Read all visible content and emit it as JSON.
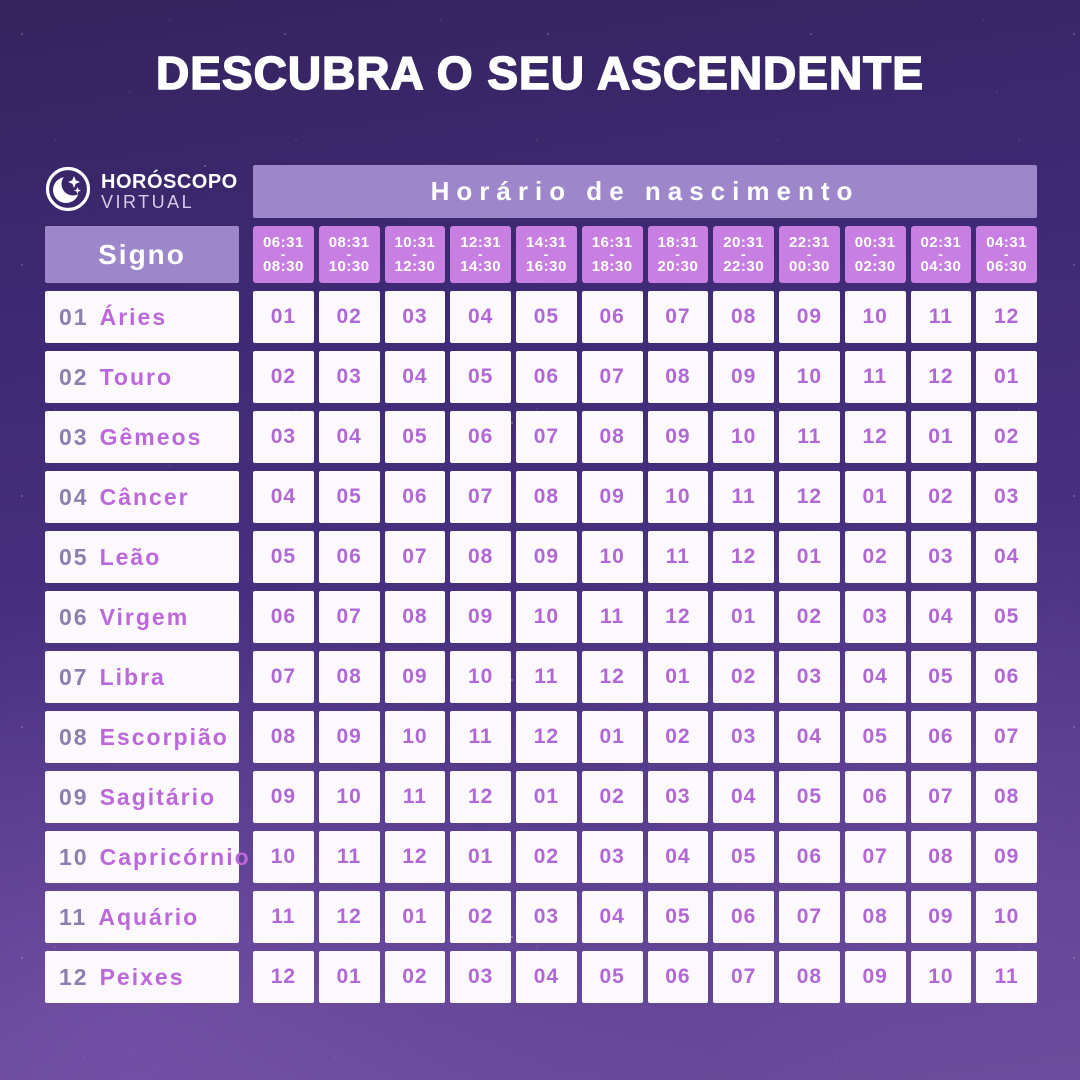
{
  "title": "DESCUBRA O SEU ASCENDENTE",
  "logo": {
    "line1": "HORÓSCOPO",
    "line2": "VIRTUAL"
  },
  "table": {
    "banner": "Horário de nascimento",
    "corner": "Signo",
    "separator": "-",
    "time_slots": [
      {
        "start": "06:31",
        "end": "08:30"
      },
      {
        "start": "08:31",
        "end": "10:30"
      },
      {
        "start": "10:31",
        "end": "12:30"
      },
      {
        "start": "12:31",
        "end": "14:30"
      },
      {
        "start": "14:31",
        "end": "16:30"
      },
      {
        "start": "16:31",
        "end": "18:30"
      },
      {
        "start": "18:31",
        "end": "20:30"
      },
      {
        "start": "20:31",
        "end": "22:30"
      },
      {
        "start": "22:31",
        "end": "00:30"
      },
      {
        "start": "00:31",
        "end": "02:30"
      },
      {
        "start": "02:31",
        "end": "04:30"
      },
      {
        "start": "04:31",
        "end": "06:30"
      }
    ],
    "signs": [
      {
        "num": "01",
        "name": "Áries"
      },
      {
        "num": "02",
        "name": "Touro"
      },
      {
        "num": "03",
        "name": "Gêmeos"
      },
      {
        "num": "04",
        "name": "Câncer"
      },
      {
        "num": "05",
        "name": "Leão"
      },
      {
        "num": "06",
        "name": "Virgem"
      },
      {
        "num": "07",
        "name": "Libra"
      },
      {
        "num": "08",
        "name": "Escorpião"
      },
      {
        "num": "09",
        "name": "Sagitário"
      },
      {
        "num": "10",
        "name": "Capricórnio"
      },
      {
        "num": "11",
        "name": "Aquário"
      },
      {
        "num": "12",
        "name": "Peixes"
      }
    ],
    "grid": [
      [
        "01",
        "02",
        "03",
        "04",
        "05",
        "06",
        "07",
        "08",
        "09",
        "10",
        "11",
        "12"
      ],
      [
        "02",
        "03",
        "04",
        "05",
        "06",
        "07",
        "08",
        "09",
        "10",
        "11",
        "12",
        "01"
      ],
      [
        "03",
        "04",
        "05",
        "06",
        "07",
        "08",
        "09",
        "10",
        "11",
        "12",
        "01",
        "02"
      ],
      [
        "04",
        "05",
        "06",
        "07",
        "08",
        "09",
        "10",
        "11",
        "12",
        "01",
        "02",
        "03"
      ],
      [
        "05",
        "06",
        "07",
        "08",
        "09",
        "10",
        "11",
        "12",
        "01",
        "02",
        "03",
        "04"
      ],
      [
        "06",
        "07",
        "08",
        "09",
        "10",
        "11",
        "12",
        "01",
        "02",
        "03",
        "04",
        "05"
      ],
      [
        "07",
        "08",
        "09",
        "10",
        "11",
        "12",
        "01",
        "02",
        "03",
        "04",
        "05",
        "06"
      ],
      [
        "08",
        "09",
        "10",
        "11",
        "12",
        "01",
        "02",
        "03",
        "04",
        "05",
        "06",
        "07"
      ],
      [
        "09",
        "10",
        "11",
        "12",
        "01",
        "02",
        "03",
        "04",
        "05",
        "06",
        "07",
        "08"
      ],
      [
        "10",
        "11",
        "12",
        "01",
        "02",
        "03",
        "04",
        "05",
        "06",
        "07",
        "08",
        "09"
      ],
      [
        "11",
        "12",
        "01",
        "02",
        "03",
        "04",
        "05",
        "06",
        "07",
        "08",
        "09",
        "10"
      ],
      [
        "12",
        "01",
        "02",
        "03",
        "04",
        "05",
        "06",
        "07",
        "08",
        "09",
        "10",
        "11"
      ]
    ]
  },
  "chart_data": {
    "type": "table",
    "title": "DESCUBRA O SEU ASCENDENTE",
    "column_header_group": "Horário de nascimento",
    "row_header": "Signo",
    "columns": [
      "06:31-08:30",
      "08:31-10:30",
      "10:31-12:30",
      "12:31-14:30",
      "14:31-16:30",
      "16:31-18:30",
      "18:31-20:30",
      "20:31-22:30",
      "22:31-00:30",
      "00:31-02:30",
      "02:31-04:30",
      "04:31-06:30"
    ],
    "rows": [
      "01 Áries",
      "02 Touro",
      "03 Gêmeos",
      "04 Câncer",
      "05 Leão",
      "06 Virgem",
      "07 Libra",
      "08 Escorpião",
      "09 Sagitário",
      "10 Capricórnio",
      "11 Aquário",
      "12 Peixes"
    ],
    "values": [
      [
        1,
        2,
        3,
        4,
        5,
        6,
        7,
        8,
        9,
        10,
        11,
        12
      ],
      [
        2,
        3,
        4,
        5,
        6,
        7,
        8,
        9,
        10,
        11,
        12,
        1
      ],
      [
        3,
        4,
        5,
        6,
        7,
        8,
        9,
        10,
        11,
        12,
        1,
        2
      ],
      [
        4,
        5,
        6,
        7,
        8,
        9,
        10,
        11,
        12,
        1,
        2,
        3
      ],
      [
        5,
        6,
        7,
        8,
        9,
        10,
        11,
        12,
        1,
        2,
        3,
        4
      ],
      [
        6,
        7,
        8,
        9,
        10,
        11,
        12,
        1,
        2,
        3,
        4,
        5
      ],
      [
        7,
        8,
        9,
        10,
        11,
        12,
        1,
        2,
        3,
        4,
        5,
        6
      ],
      [
        8,
        9,
        10,
        11,
        12,
        1,
        2,
        3,
        4,
        5,
        6,
        7
      ],
      [
        9,
        10,
        11,
        12,
        1,
        2,
        3,
        4,
        5,
        6,
        7,
        8
      ],
      [
        10,
        11,
        12,
        1,
        2,
        3,
        4,
        5,
        6,
        7,
        8,
        9
      ],
      [
        11,
        12,
        1,
        2,
        3,
        4,
        5,
        6,
        7,
        8,
        9,
        10
      ],
      [
        12,
        1,
        2,
        3,
        4,
        5,
        6,
        7,
        8,
        9,
        10,
        11
      ]
    ]
  },
  "colors": {
    "title_white": "#ffffff",
    "panel_light_purple": "#9d86ca",
    "header_orchid": "#c77fe2",
    "cell_white": "#fbf9fc",
    "number_purple": "#b168d6",
    "sign_name_purple": "#bc68dc",
    "sign_number_gray": "#8b80ad"
  }
}
